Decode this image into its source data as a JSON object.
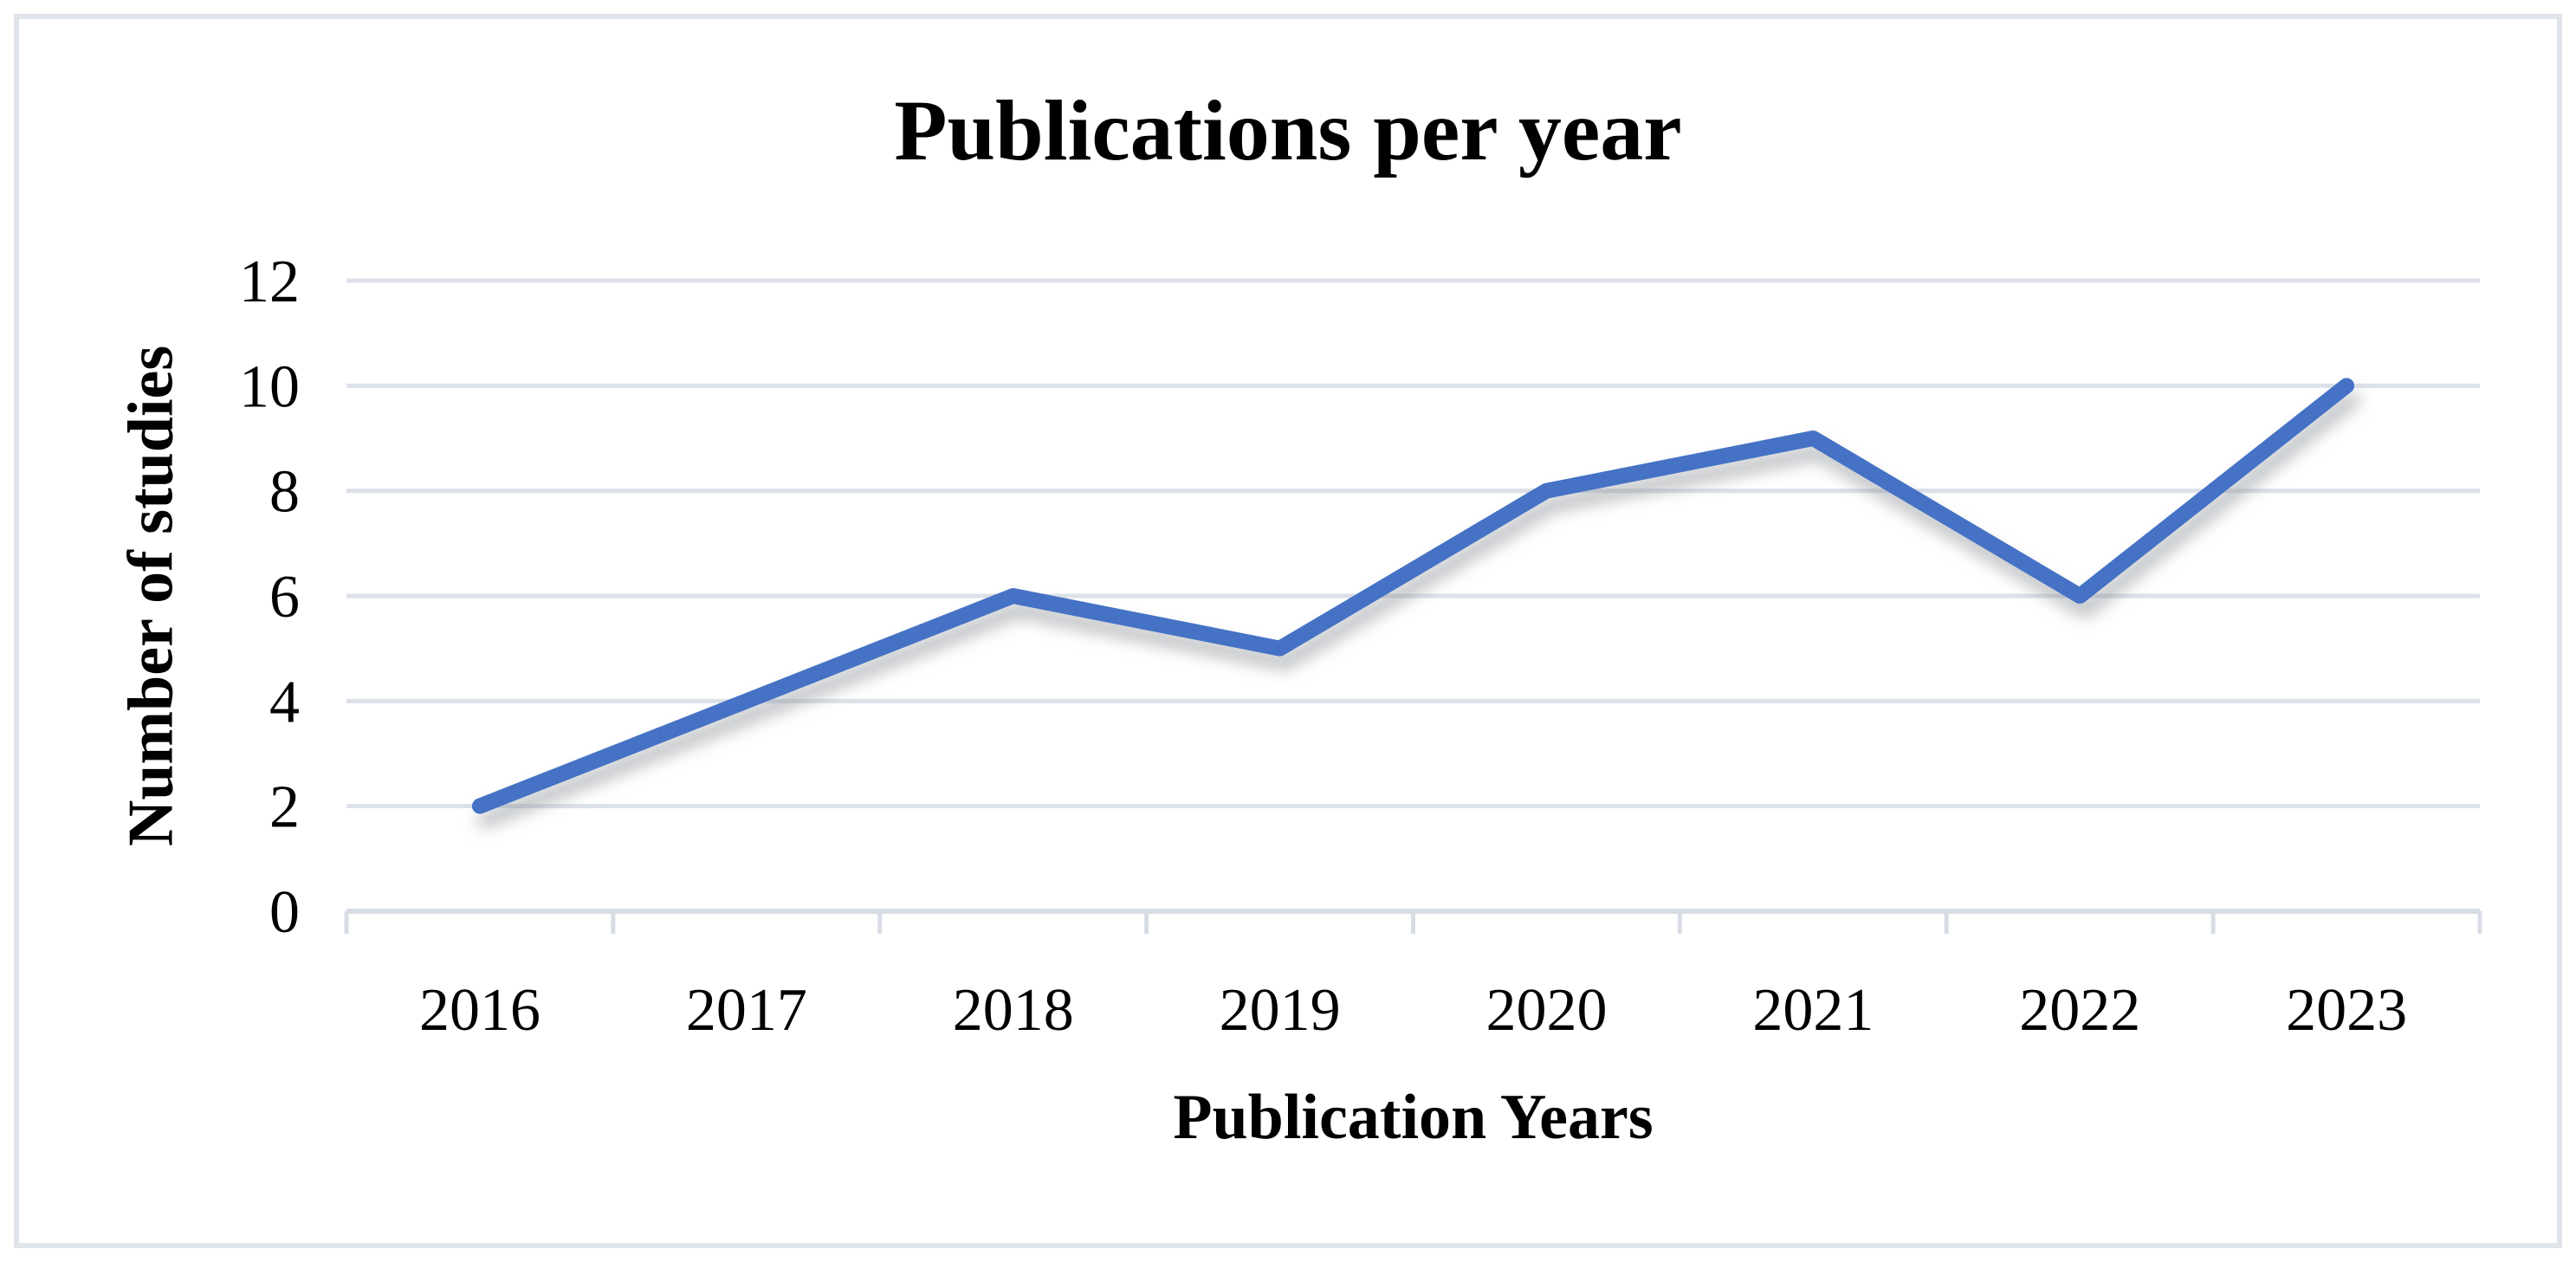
{
  "chart_data": {
    "type": "line",
    "title": "Publications per year",
    "xlabel": "Publication Years",
    "ylabel": "Number of studies",
    "categories": [
      "2016",
      "2017",
      "2018",
      "2019",
      "2020",
      "2021",
      "2022",
      "2023"
    ],
    "values": [
      2,
      4,
      6,
      5,
      8,
      9,
      6,
      10
    ],
    "yticks": [
      "0",
      "2",
      "4",
      "6",
      "8",
      "10",
      "12"
    ],
    "ylim": [
      0,
      12
    ],
    "ytick_step": 2,
    "grid": true,
    "legend_position": "none",
    "colors": {
      "line": "#4472C4",
      "gridline": "#DDE1E9",
      "axis_line": "#D7DCE5",
      "text": "#000000",
      "border": "#DFE3EA",
      "background": "#FFFFFF"
    }
  }
}
